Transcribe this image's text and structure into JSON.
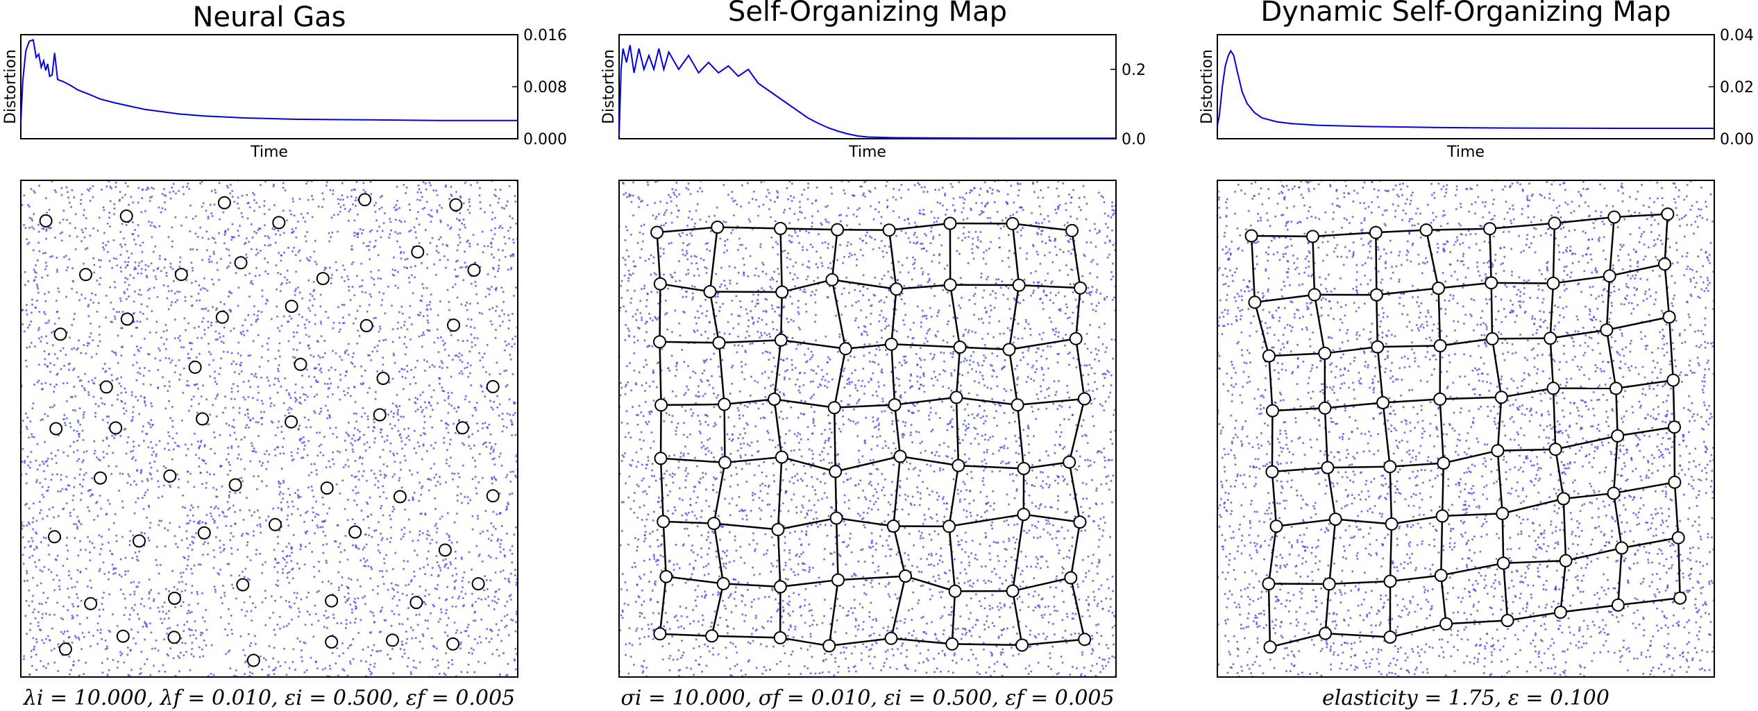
{
  "colors": {
    "curve": "#0000dd",
    "samples": "#3f47e6",
    "network": "#000000",
    "node_fill": "#ffffff",
    "frame": "#000000"
  },
  "chart_data": [
    {
      "title": "Neural Gas",
      "distortion": {
        "type": "line",
        "ylabel": "Distortion",
        "xlabel": "Time",
        "ylim": [
          0,
          0.016
        ],
        "yticks": [
          "0.000",
          "0.008",
          "0.016"
        ],
        "curve": [
          [
            0,
            0.0025
          ],
          [
            0.004,
            0.009
          ],
          [
            0.01,
            0.0135
          ],
          [
            0.017,
            0.015
          ],
          [
            0.025,
            0.0152
          ],
          [
            0.031,
            0.0125
          ],
          [
            0.036,
            0.013
          ],
          [
            0.041,
            0.011
          ],
          [
            0.046,
            0.012
          ],
          [
            0.05,
            0.0105
          ],
          [
            0.054,
            0.0115
          ],
          [
            0.058,
            0.0096
          ],
          [
            0.063,
            0.0098
          ],
          [
            0.068,
            0.0132
          ],
          [
            0.074,
            0.0091
          ],
          [
            0.085,
            0.0088
          ],
          [
            0.1,
            0.0082
          ],
          [
            0.115,
            0.0075
          ],
          [
            0.135,
            0.0069
          ],
          [
            0.16,
            0.0061
          ],
          [
            0.19,
            0.0055
          ],
          [
            0.22,
            0.005
          ],
          [
            0.25,
            0.0045
          ],
          [
            0.28,
            0.0042
          ],
          [
            0.32,
            0.0038
          ],
          [
            0.37,
            0.0035
          ],
          [
            0.45,
            0.0032
          ],
          [
            0.55,
            0.003
          ],
          [
            0.7,
            0.0029
          ],
          [
            0.85,
            0.0028
          ],
          [
            1,
            0.0028
          ]
        ]
      },
      "map": {
        "type": "scatter",
        "network": "none",
        "caption": "λi = 10.000, λf = 0.010, εi = 0.500, εf = 0.005"
      }
    },
    {
      "title": "Self-Organizing Map",
      "distortion": {
        "type": "line",
        "ylabel": "Distortion",
        "xlabel": "Time",
        "ylim": [
          0,
          0.3
        ],
        "yticks": [
          "0.0",
          "0.2"
        ],
        "curve": [
          [
            0,
            0.01
          ],
          [
            0.004,
            0.2
          ],
          [
            0.008,
            0.26
          ],
          [
            0.015,
            0.22
          ],
          [
            0.022,
            0.27
          ],
          [
            0.03,
            0.19
          ],
          [
            0.04,
            0.26
          ],
          [
            0.05,
            0.2
          ],
          [
            0.06,
            0.24
          ],
          [
            0.07,
            0.2
          ],
          [
            0.08,
            0.26
          ],
          [
            0.09,
            0.2
          ],
          [
            0.1,
            0.25
          ],
          [
            0.12,
            0.2
          ],
          [
            0.14,
            0.24
          ],
          [
            0.16,
            0.19
          ],
          [
            0.18,
            0.22
          ],
          [
            0.2,
            0.19
          ],
          [
            0.22,
            0.21
          ],
          [
            0.24,
            0.18
          ],
          [
            0.26,
            0.2
          ],
          [
            0.28,
            0.16
          ],
          [
            0.3,
            0.14
          ],
          [
            0.32,
            0.12
          ],
          [
            0.34,
            0.1
          ],
          [
            0.36,
            0.08
          ],
          [
            0.38,
            0.06
          ],
          [
            0.4,
            0.045
          ],
          [
            0.42,
            0.032
          ],
          [
            0.44,
            0.022
          ],
          [
            0.46,
            0.014
          ],
          [
            0.48,
            0.008
          ],
          [
            0.5,
            0.005
          ],
          [
            0.55,
            0.003
          ],
          [
            0.65,
            0.002
          ],
          [
            0.8,
            0.0015
          ],
          [
            1,
            0.0015
          ]
        ]
      },
      "map": {
        "type": "scatter",
        "network": "grid",
        "caption": "σi = 10.000, σf = 0.010, εi = 0.500, εf = 0.005"
      }
    },
    {
      "title": "Dynamic Self-Organizing Map",
      "distortion": {
        "type": "line",
        "ylabel": "Distortion",
        "xlabel": "Time",
        "ylim": [
          0,
          0.04
        ],
        "yticks": [
          "0.00",
          "0.02",
          "0.04"
        ],
        "curve": [
          [
            0,
            0.005
          ],
          [
            0.004,
            0.009
          ],
          [
            0.01,
            0.02
          ],
          [
            0.016,
            0.028
          ],
          [
            0.022,
            0.032
          ],
          [
            0.027,
            0.0338
          ],
          [
            0.033,
            0.032
          ],
          [
            0.04,
            0.026
          ],
          [
            0.05,
            0.018
          ],
          [
            0.06,
            0.0135
          ],
          [
            0.075,
            0.01
          ],
          [
            0.09,
            0.008
          ],
          [
            0.12,
            0.0065
          ],
          [
            0.15,
            0.0058
          ],
          [
            0.2,
            0.0052
          ],
          [
            0.3,
            0.0047
          ],
          [
            0.45,
            0.0043
          ],
          [
            0.6,
            0.0041
          ],
          [
            0.8,
            0.004
          ],
          [
            1,
            0.004
          ]
        ]
      },
      "map": {
        "type": "scatter",
        "network": "grid",
        "caption": "elasticity = 1.75, ε = 0.100"
      }
    }
  ]
}
